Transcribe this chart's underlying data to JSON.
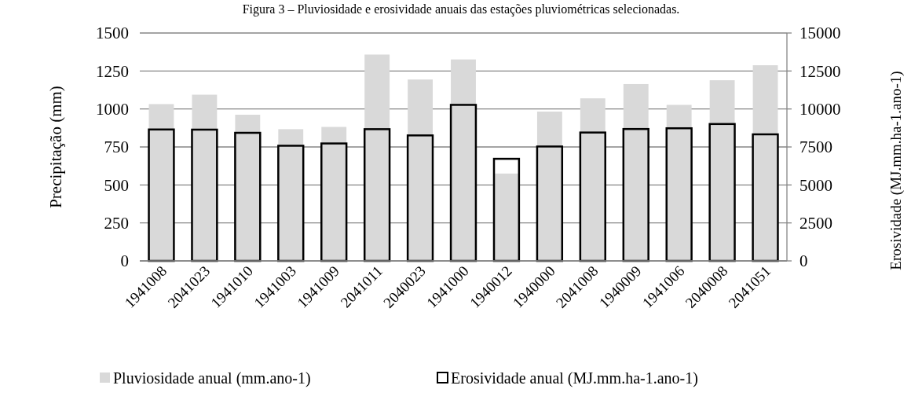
{
  "chart_data": {
    "type": "bar",
    "title": "Figura 3 – Pluviosidade e erosividade anuais das estações pluviométricas selecionadas.",
    "ylabel": "Precipitação (mm)",
    "y2label": "Erosividade (MJ.mm.ha-1.ano-1)",
    "categories": [
      "1941008",
      "2041023",
      "1941010",
      "1941003",
      "1941009",
      "2041011",
      "2040023",
      "1941000",
      "1940012",
      "1940000",
      "2041008",
      "1940009",
      "1941006",
      "2040008",
      "2041051"
    ],
    "series": [
      {
        "name": "Pluviosidade anual (mm.ano-1)",
        "color": "#d9d9d9",
        "values": [
          1032,
          1094,
          962,
          867,
          882,
          1358,
          1194,
          1326,
          575,
          983,
          1070,
          1164,
          1027,
          1189,
          1288
        ]
      },
      {
        "name": "Erosividade anual (MJ.mm.ha-1.ano-1)",
        "color": "#000000",
        "axis": "y2",
        "values": [
          8650,
          8640,
          8430,
          7580,
          7730,
          8670,
          8260,
          10270,
          6720,
          7530,
          8450,
          8680,
          8730,
          9010,
          8330
        ]
      }
    ],
    "ylim": [
      0,
      1500
    ],
    "yticks": [
      0,
      250,
      500,
      750,
      1000,
      1250,
      1500
    ],
    "y2lim": [
      0,
      15000
    ],
    "y2ticks": [
      0,
      2500,
      5000,
      7500,
      10000,
      12500,
      15000
    ],
    "grid": "y",
    "legend": "bottom"
  }
}
